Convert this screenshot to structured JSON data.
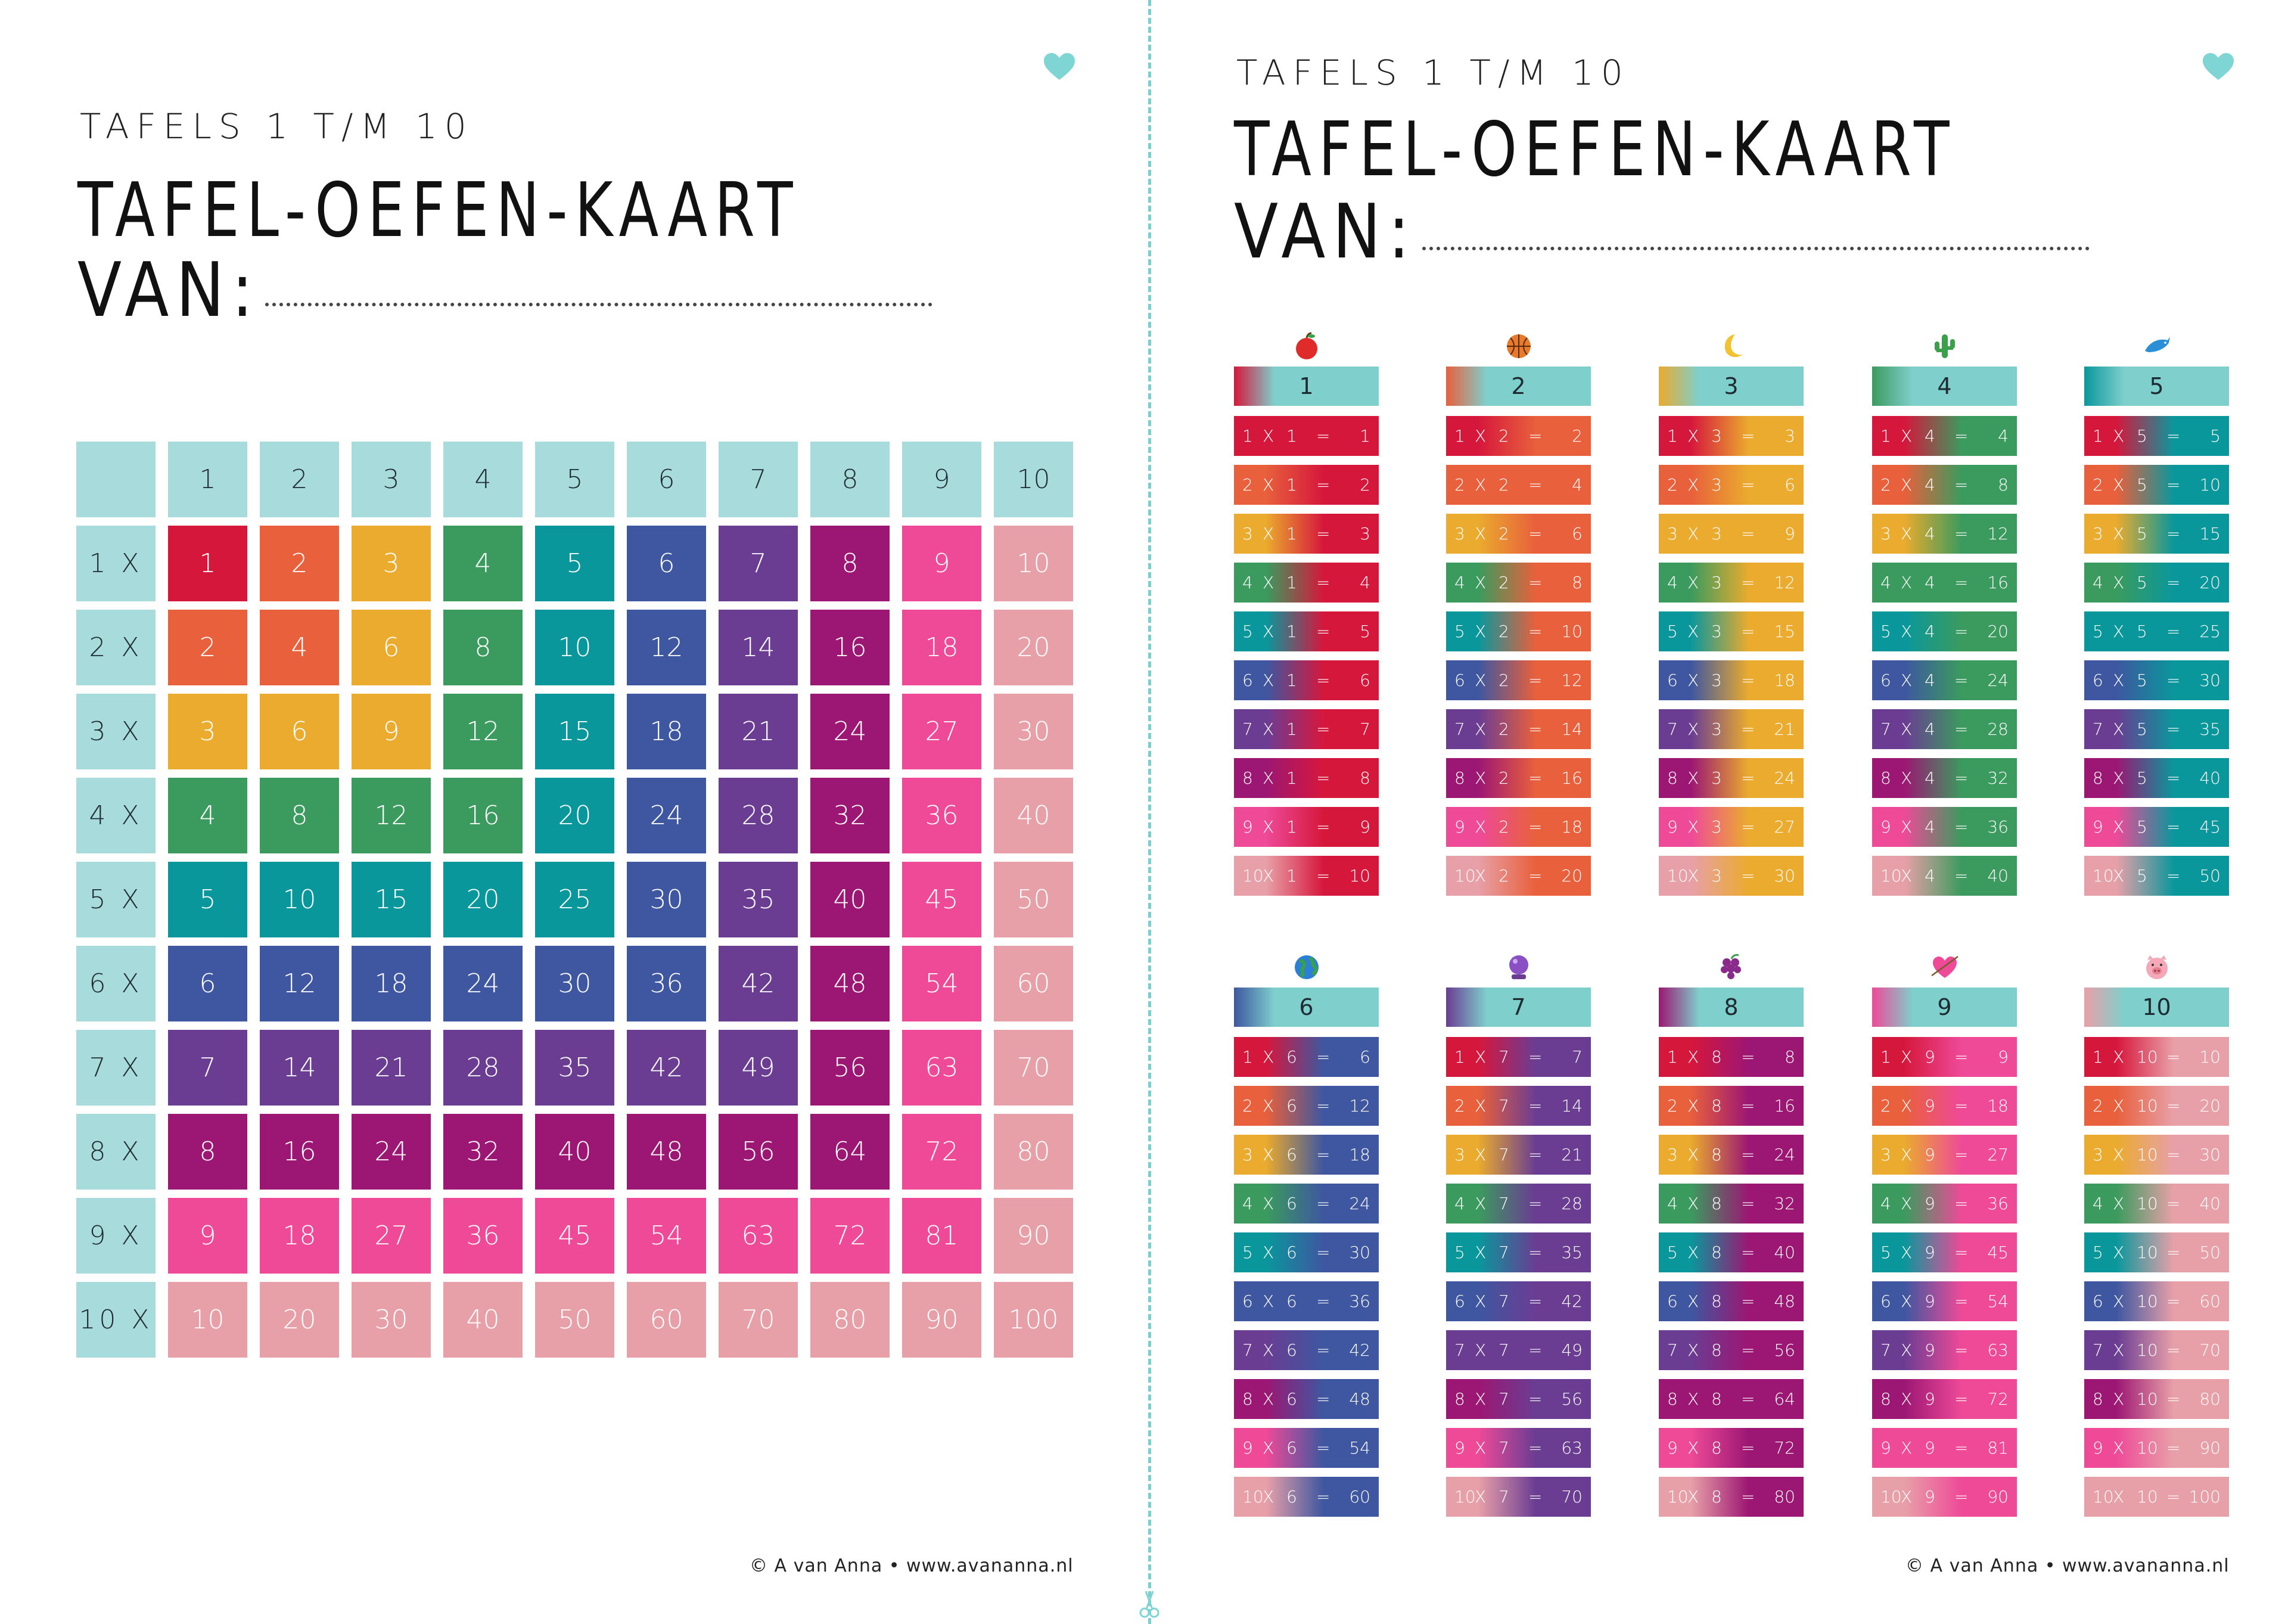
{
  "subtitle": "TAFELS 1 T/M 10",
  "title": "TAFEL-OEFEN-KAART",
  "van": "VAN:",
  "footer": "© A van Anna • www.avananna.nl",
  "icons": {
    "heart": "heart-icon",
    "scissors": "scissors-icon",
    "tables": [
      "apple-icon",
      "basketball-icon",
      "moon-icon",
      "cactus-icon",
      "dolphin-icon",
      "globe-icon",
      "crystal-ball-icon",
      "grapes-icon",
      "heart-arrow-icon",
      "pig-icon"
    ]
  },
  "colors": {
    "header": "#7fcfcc",
    "header_light": "#a8dbdc",
    "rows": [
      "#d6173c",
      "#e8603c",
      "#eaab2e",
      "#3b9b5e",
      "#0a979c",
      "#3e57a0",
      "#6a3d93",
      "#9c1773",
      "#ee4a98",
      "#e8a0a8"
    ],
    "tables": [
      "#d6173c",
      "#e8603c",
      "#eaab2e",
      "#3b9b5e",
      "#0a979c",
      "#3e57a0",
      "#6a3d93",
      "#9c1773",
      "#ee4a98",
      "#e8a0a8"
    ],
    "heart": "#7fd4d4"
  },
  "grid": {
    "col_headers": [
      "1",
      "2",
      "3",
      "4",
      "5",
      "6",
      "7",
      "8",
      "9",
      "10"
    ],
    "row_labels": [
      "1 X",
      "2 X",
      "3 X",
      "4 X",
      "5 X",
      "6 X",
      "7 X",
      "8 X",
      "9 X",
      "10 X"
    ],
    "values": [
      [
        "1",
        "2",
        "3",
        "4",
        "5",
        "6",
        "7",
        "8",
        "9",
        "10"
      ],
      [
        "2",
        "4",
        "6",
        "8",
        "10",
        "12",
        "14",
        "16",
        "18",
        "20"
      ],
      [
        "3",
        "6",
        "9",
        "12",
        "15",
        "18",
        "21",
        "24",
        "27",
        "30"
      ],
      [
        "4",
        "8",
        "12",
        "16",
        "20",
        "24",
        "28",
        "32",
        "36",
        "40"
      ],
      [
        "5",
        "10",
        "15",
        "20",
        "25",
        "30",
        "35",
        "40",
        "45",
        "50"
      ],
      [
        "6",
        "12",
        "18",
        "24",
        "30",
        "36",
        "42",
        "48",
        "54",
        "60"
      ],
      [
        "7",
        "14",
        "21",
        "28",
        "35",
        "42",
        "49",
        "56",
        "63",
        "70"
      ],
      [
        "8",
        "16",
        "24",
        "32",
        "40",
        "48",
        "56",
        "64",
        "72",
        "80"
      ],
      [
        "9",
        "18",
        "27",
        "36",
        "45",
        "54",
        "63",
        "72",
        "81",
        "90"
      ],
      [
        "10",
        "20",
        "30",
        "40",
        "50",
        "60",
        "70",
        "80",
        "90",
        "100"
      ]
    ]
  },
  "tables": [
    {
      "header": "1",
      "rows": [
        [
          "1",
          "X",
          "1",
          "=",
          "1"
        ],
        [
          "2",
          "X",
          "1",
          "=",
          "2"
        ],
        [
          "3",
          "X",
          "1",
          "=",
          "3"
        ],
        [
          "4",
          "X",
          "1",
          "=",
          "4"
        ],
        [
          "5",
          "X",
          "1",
          "=",
          "5"
        ],
        [
          "6",
          "X",
          "1",
          "=",
          "6"
        ],
        [
          "7",
          "X",
          "1",
          "=",
          "7"
        ],
        [
          "8",
          "X",
          "1",
          "=",
          "8"
        ],
        [
          "9",
          "X",
          "1",
          "=",
          "9"
        ],
        [
          "10",
          "X",
          "1",
          "=",
          "10"
        ]
      ]
    },
    {
      "header": "2",
      "rows": [
        [
          "1",
          "X",
          "2",
          "=",
          "2"
        ],
        [
          "2",
          "X",
          "2",
          "=",
          "4"
        ],
        [
          "3",
          "X",
          "2",
          "=",
          "6"
        ],
        [
          "4",
          "X",
          "2",
          "=",
          "8"
        ],
        [
          "5",
          "X",
          "2",
          "=",
          "10"
        ],
        [
          "6",
          "X",
          "2",
          "=",
          "12"
        ],
        [
          "7",
          "X",
          "2",
          "=",
          "14"
        ],
        [
          "8",
          "X",
          "2",
          "=",
          "16"
        ],
        [
          "9",
          "X",
          "2",
          "=",
          "18"
        ],
        [
          "10",
          "X",
          "2",
          "=",
          "20"
        ]
      ]
    },
    {
      "header": "3",
      "rows": [
        [
          "1",
          "X",
          "3",
          "=",
          "3"
        ],
        [
          "2",
          "X",
          "3",
          "=",
          "6"
        ],
        [
          "3",
          "X",
          "3",
          "=",
          "9"
        ],
        [
          "4",
          "X",
          "3",
          "=",
          "12"
        ],
        [
          "5",
          "X",
          "3",
          "=",
          "15"
        ],
        [
          "6",
          "X",
          "3",
          "=",
          "18"
        ],
        [
          "7",
          "X",
          "3",
          "=",
          "21"
        ],
        [
          "8",
          "X",
          "3",
          "=",
          "24"
        ],
        [
          "9",
          "X",
          "3",
          "=",
          "27"
        ],
        [
          "10",
          "X",
          "3",
          "=",
          "30"
        ]
      ]
    },
    {
      "header": "4",
      "rows": [
        [
          "1",
          "X",
          "4",
          "=",
          "4"
        ],
        [
          "2",
          "X",
          "4",
          "=",
          "8"
        ],
        [
          "3",
          "X",
          "4",
          "=",
          "12"
        ],
        [
          "4",
          "X",
          "4",
          "=",
          "16"
        ],
        [
          "5",
          "X",
          "4",
          "=",
          "20"
        ],
        [
          "6",
          "X",
          "4",
          "=",
          "24"
        ],
        [
          "7",
          "X",
          "4",
          "=",
          "28"
        ],
        [
          "8",
          "X",
          "4",
          "=",
          "32"
        ],
        [
          "9",
          "X",
          "4",
          "=",
          "36"
        ],
        [
          "10",
          "X",
          "4",
          "=",
          "40"
        ]
      ]
    },
    {
      "header": "5",
      "rows": [
        [
          "1",
          "X",
          "5",
          "=",
          "5"
        ],
        [
          "2",
          "X",
          "5",
          "=",
          "10"
        ],
        [
          "3",
          "X",
          "5",
          "=",
          "15"
        ],
        [
          "4",
          "X",
          "5",
          "=",
          "20"
        ],
        [
          "5",
          "X",
          "5",
          "=",
          "25"
        ],
        [
          "6",
          "X",
          "5",
          "=",
          "30"
        ],
        [
          "7",
          "X",
          "5",
          "=",
          "35"
        ],
        [
          "8",
          "X",
          "5",
          "=",
          "40"
        ],
        [
          "9",
          "X",
          "5",
          "=",
          "45"
        ],
        [
          "10",
          "X",
          "5",
          "=",
          "50"
        ]
      ]
    },
    {
      "header": "6",
      "rows": [
        [
          "1",
          "X",
          "6",
          "=",
          "6"
        ],
        [
          "2",
          "X",
          "6",
          "=",
          "12"
        ],
        [
          "3",
          "X",
          "6",
          "=",
          "18"
        ],
        [
          "4",
          "X",
          "6",
          "=",
          "24"
        ],
        [
          "5",
          "X",
          "6",
          "=",
          "30"
        ],
        [
          "6",
          "X",
          "6",
          "=",
          "36"
        ],
        [
          "7",
          "X",
          "6",
          "=",
          "42"
        ],
        [
          "8",
          "X",
          "6",
          "=",
          "48"
        ],
        [
          "9",
          "X",
          "6",
          "=",
          "54"
        ],
        [
          "10",
          "X",
          "6",
          "=",
          "60"
        ]
      ]
    },
    {
      "header": "7",
      "rows": [
        [
          "1",
          "X",
          "7",
          "=",
          "7"
        ],
        [
          "2",
          "X",
          "7",
          "=",
          "14"
        ],
        [
          "3",
          "X",
          "7",
          "=",
          "21"
        ],
        [
          "4",
          "X",
          "7",
          "=",
          "28"
        ],
        [
          "5",
          "X",
          "7",
          "=",
          "35"
        ],
        [
          "6",
          "X",
          "7",
          "=",
          "42"
        ],
        [
          "7",
          "X",
          "7",
          "=",
          "49"
        ],
        [
          "8",
          "X",
          "7",
          "=",
          "56"
        ],
        [
          "9",
          "X",
          "7",
          "=",
          "63"
        ],
        [
          "10",
          "X",
          "7",
          "=",
          "70"
        ]
      ]
    },
    {
      "header": "8",
      "rows": [
        [
          "1",
          "X",
          "8",
          "=",
          "8"
        ],
        [
          "2",
          "X",
          "8",
          "=",
          "16"
        ],
        [
          "3",
          "X",
          "8",
          "=",
          "24"
        ],
        [
          "4",
          "X",
          "8",
          "=",
          "32"
        ],
        [
          "5",
          "X",
          "8",
          "=",
          "40"
        ],
        [
          "6",
          "X",
          "8",
          "=",
          "48"
        ],
        [
          "7",
          "X",
          "8",
          "=",
          "56"
        ],
        [
          "8",
          "X",
          "8",
          "=",
          "64"
        ],
        [
          "9",
          "X",
          "8",
          "=",
          "72"
        ],
        [
          "10",
          "X",
          "8",
          "=",
          "80"
        ]
      ]
    },
    {
      "header": "9",
      "rows": [
        [
          "1",
          "X",
          "9",
          "=",
          "9"
        ],
        [
          "2",
          "X",
          "9",
          "=",
          "18"
        ],
        [
          "3",
          "X",
          "9",
          "=",
          "27"
        ],
        [
          "4",
          "X",
          "9",
          "=",
          "36"
        ],
        [
          "5",
          "X",
          "9",
          "=",
          "45"
        ],
        [
          "6",
          "X",
          "9",
          "=",
          "54"
        ],
        [
          "7",
          "X",
          "9",
          "=",
          "63"
        ],
        [
          "8",
          "X",
          "9",
          "=",
          "72"
        ],
        [
          "9",
          "X",
          "9",
          "=",
          "81"
        ],
        [
          "10",
          "X",
          "9",
          "=",
          "90"
        ]
      ]
    },
    {
      "header": "10",
      "rows": [
        [
          "1",
          "X",
          "10",
          "=",
          "10"
        ],
        [
          "2",
          "X",
          "10",
          "=",
          "20"
        ],
        [
          "3",
          "X",
          "10",
          "=",
          "30"
        ],
        [
          "4",
          "X",
          "10",
          "=",
          "40"
        ],
        [
          "5",
          "X",
          "10",
          "=",
          "50"
        ],
        [
          "6",
          "X",
          "10",
          "=",
          "60"
        ],
        [
          "7",
          "X",
          "10",
          "=",
          "70"
        ],
        [
          "8",
          "X",
          "10",
          "=",
          "80"
        ],
        [
          "9",
          "X",
          "10",
          "=",
          "90"
        ],
        [
          "10",
          "X",
          "10",
          "=",
          "100"
        ]
      ]
    }
  ]
}
